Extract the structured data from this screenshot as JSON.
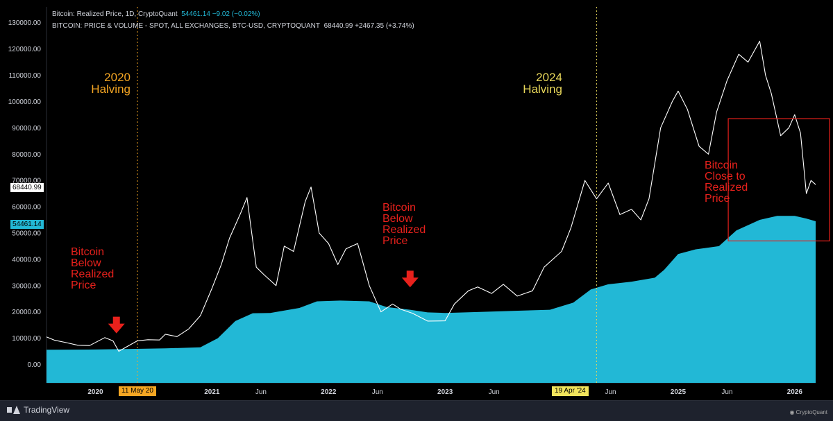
{
  "legend": {
    "line1_label": "Bitcoin: Realized Price, 1D, CryptoQuant",
    "line1_values": "54461.14  −9.02 (−0.02%)",
    "line2_label": "BITCOIN: PRICE & VOLUME - SPOT, ALL EXCHANGES, BTC-USD, CRYPTOQUANT",
    "line2_values": "68440.99  +2467.35 (+3.74%)"
  },
  "tags": {
    "price_current": "68440.99",
    "realized_current": "54461.14",
    "halving_2020_date": "11 May 20",
    "halving_2024_date": "19 Apr '24"
  },
  "annotations": {
    "halving_2020": "2020\nHalving",
    "halving_2024": "2024\nHalving",
    "below_1": "Bitcoin\nBelow\nRealized\nPrice",
    "below_2": "Bitcoin\nBelow\nRealized\nPrice",
    "close": "Bitcoin\nClose to\nRealized\nPrice"
  },
  "footer": {
    "brand": "TradingView",
    "source": "CryptoQuant"
  },
  "colors": {
    "background": "#000000",
    "realized_fill": "#22b8d6",
    "price_line": "#ffffff",
    "annotation_red": "#e8211c",
    "halving_2020": "#f5a623",
    "halving_2024": "#e8d75a"
  },
  "chart_data": {
    "type": "line",
    "x_ticks": [
      "2020",
      "Jun",
      "2021",
      "Jun",
      "2022",
      "Jun",
      "2023",
      "Jun",
      "2024",
      "Jun",
      "2025",
      "Jun",
      "2026"
    ],
    "x_tick_dates": [
      2020.0,
      2020.42,
      2021.0,
      2021.42,
      2022.0,
      2022.42,
      2023.0,
      2023.42,
      2024.0,
      2024.42,
      2025.0,
      2025.42,
      2026.0
    ],
    "y_ticks": [
      "0.00",
      "10000.00",
      "20000.00",
      "30000.00",
      "40000.00",
      "50000.00",
      "60000.00",
      "70000.00",
      "80000.00",
      "90000.00",
      "100000.00",
      "110000.00",
      "120000.00",
      "130000.00"
    ],
    "xlim": [
      2019.58,
      2026.18
    ],
    "ylim": [
      -7000,
      136000
    ],
    "series": [
      {
        "name": "Bitcoin: Realized Price",
        "style": "area",
        "points": [
          [
            2019.58,
            5600
          ],
          [
            2020.0,
            5700
          ],
          [
            2020.3,
            5900
          ],
          [
            2020.6,
            6100
          ],
          [
            2020.9,
            6500
          ],
          [
            2021.05,
            10000
          ],
          [
            2021.2,
            16500
          ],
          [
            2021.35,
            19500
          ],
          [
            2021.5,
            19600
          ],
          [
            2021.75,
            21500
          ],
          [
            2021.9,
            24000
          ],
          [
            2022.1,
            24300
          ],
          [
            2022.35,
            24000
          ],
          [
            2022.5,
            21800
          ],
          [
            2022.7,
            20800
          ],
          [
            2022.85,
            19800
          ],
          [
            2023.0,
            19600
          ],
          [
            2023.3,
            20000
          ],
          [
            2023.6,
            20400
          ],
          [
            2023.9,
            20800
          ],
          [
            2024.1,
            23500
          ],
          [
            2024.25,
            28500
          ],
          [
            2024.4,
            30500
          ],
          [
            2024.6,
            31500
          ],
          [
            2024.8,
            33000
          ],
          [
            2024.88,
            36000
          ],
          [
            2025.0,
            42000
          ],
          [
            2025.15,
            43800
          ],
          [
            2025.35,
            45000
          ],
          [
            2025.5,
            51000
          ],
          [
            2025.7,
            55000
          ],
          [
            2025.85,
            56500
          ],
          [
            2026.0,
            56500
          ],
          [
            2026.1,
            55500
          ],
          [
            2026.18,
            54461
          ]
        ]
      },
      {
        "name": "BITCOIN: PRICE & VOLUME - SPOT, ALL EXCHANGES, BTC-USD",
        "style": "line",
        "points": [
          [
            2019.58,
            10500
          ],
          [
            2019.65,
            9200
          ],
          [
            2019.75,
            8300
          ],
          [
            2019.85,
            7300
          ],
          [
            2019.95,
            7200
          ],
          [
            2020.08,
            10200
          ],
          [
            2020.15,
            9000
          ],
          [
            2020.2,
            5000
          ],
          [
            2020.28,
            7000
          ],
          [
            2020.36,
            9000
          ],
          [
            2020.45,
            9400
          ],
          [
            2020.55,
            9300
          ],
          [
            2020.6,
            11500
          ],
          [
            2020.7,
            10600
          ],
          [
            2020.8,
            13500
          ],
          [
            2020.9,
            18500
          ],
          [
            2021.0,
            29000
          ],
          [
            2021.08,
            38000
          ],
          [
            2021.15,
            48000
          ],
          [
            2021.25,
            58000
          ],
          [
            2021.3,
            63500
          ],
          [
            2021.38,
            37000
          ],
          [
            2021.45,
            34000
          ],
          [
            2021.55,
            30000
          ],
          [
            2021.62,
            45000
          ],
          [
            2021.7,
            43000
          ],
          [
            2021.8,
            62000
          ],
          [
            2021.85,
            67500
          ],
          [
            2021.92,
            50000
          ],
          [
            2022.0,
            46000
          ],
          [
            2022.08,
            38000
          ],
          [
            2022.15,
            44000
          ],
          [
            2022.25,
            46000
          ],
          [
            2022.35,
            30000
          ],
          [
            2022.45,
            20000
          ],
          [
            2022.55,
            23000
          ],
          [
            2022.62,
            21000
          ],
          [
            2022.72,
            19500
          ],
          [
            2022.85,
            16500
          ],
          [
            2023.0,
            16600
          ],
          [
            2023.08,
            23000
          ],
          [
            2023.2,
            28000
          ],
          [
            2023.28,
            29500
          ],
          [
            2023.4,
            27000
          ],
          [
            2023.5,
            30500
          ],
          [
            2023.62,
            26000
          ],
          [
            2023.75,
            28000
          ],
          [
            2023.85,
            37000
          ],
          [
            2024.0,
            43000
          ],
          [
            2024.08,
            52000
          ],
          [
            2024.2,
            70000
          ],
          [
            2024.3,
            63000
          ],
          [
            2024.4,
            69000
          ],
          [
            2024.5,
            57000
          ],
          [
            2024.6,
            59000
          ],
          [
            2024.68,
            55000
          ],
          [
            2024.75,
            63000
          ],
          [
            2024.85,
            90000
          ],
          [
            2024.95,
            100000
          ],
          [
            2025.0,
            104000
          ],
          [
            2025.08,
            97000
          ],
          [
            2025.18,
            83000
          ],
          [
            2025.26,
            80000
          ],
          [
            2025.33,
            96000
          ],
          [
            2025.42,
            108000
          ],
          [
            2025.52,
            118000
          ],
          [
            2025.6,
            115000
          ],
          [
            2025.7,
            123000
          ],
          [
            2025.75,
            110000
          ],
          [
            2025.8,
            103000
          ],
          [
            2025.88,
            87000
          ],
          [
            2025.95,
            90000
          ],
          [
            2026.0,
            95000
          ],
          [
            2026.05,
            88000
          ],
          [
            2026.1,
            65000
          ],
          [
            2026.14,
            70000
          ],
          [
            2026.18,
            68441
          ]
        ]
      }
    ],
    "vertical_markers": [
      {
        "label": "11 May 20",
        "x": 2020.36
      },
      {
        "label": "19 Apr '24",
        "x": 2024.3
      }
    ],
    "highlight_box": {
      "x0": 2025.43,
      "x1": 2026.44,
      "y0": 47000,
      "y1": 93500
    },
    "arrows": [
      {
        "x": 2020.18,
        "y": 15000
      },
      {
        "x": 2022.7,
        "y": 32500
      }
    ],
    "grid": false,
    "legend_position": "top-left"
  }
}
